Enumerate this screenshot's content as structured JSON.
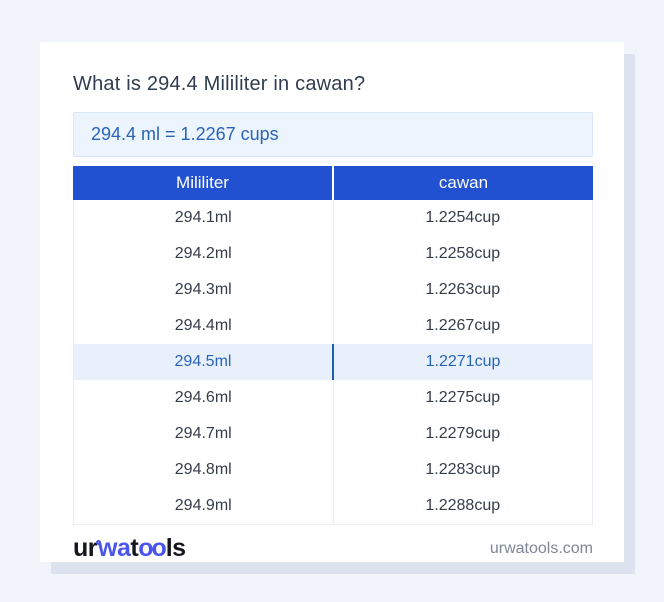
{
  "page": {
    "title": "What is 294.4 Mililiter in cawan?"
  },
  "result": {
    "text": "294.4 ml = 1.2267 cups"
  },
  "table": {
    "headers": [
      "Mililiter",
      "cawan"
    ],
    "rows": [
      {
        "ml": "294.1ml",
        "cup": "1.2254cup",
        "highlighted": false
      },
      {
        "ml": "294.2ml",
        "cup": "1.2258cup",
        "highlighted": false
      },
      {
        "ml": "294.3ml",
        "cup": "1.2263cup",
        "highlighted": false
      },
      {
        "ml": "294.4ml",
        "cup": "1.2267cup",
        "highlighted": false
      },
      {
        "ml": "294.5ml",
        "cup": "1.2271cup",
        "highlighted": true
      },
      {
        "ml": "294.6ml",
        "cup": "1.2275cup",
        "highlighted": false
      },
      {
        "ml": "294.7ml",
        "cup": "1.2279cup",
        "highlighted": false
      },
      {
        "ml": "294.8ml",
        "cup": "1.2283cup",
        "highlighted": false
      },
      {
        "ml": "294.9ml",
        "cup": "1.2288cup",
        "highlighted": false
      }
    ]
  },
  "footer": {
    "logo_segments": {
      "seg1": "ur",
      "seg2": "wa",
      "seg3": "t",
      "seg4": "oo",
      "seg5": "ls"
    },
    "site_label": "urwatools.com"
  },
  "colors": {
    "header_blue": "#2151d0",
    "result_text_blue": "#2b63b7",
    "result_bg": "#ecf4fd",
    "result_border": "#d9e6f6",
    "highlight_bg": "#e8f1fb",
    "highlight_text": "#2a64b8",
    "highlight_divider": "#1f5dab",
    "logo_blue": "#4a55e9",
    "page_bg": "#f1f4fa",
    "card_shadow": "#dce2ee",
    "text_dark": "#363d49",
    "title_color": "#303c4f",
    "divider_gray": "#e6eaf1",
    "table_border": "#e9edf3",
    "site_gray": "#7e8694"
  }
}
